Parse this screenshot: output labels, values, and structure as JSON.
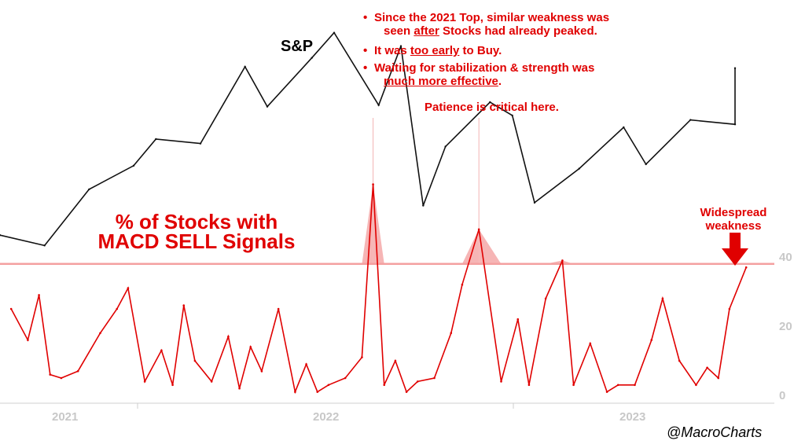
{
  "chart_data": [
    {
      "type": "line",
      "title": "S&P",
      "series": [
        {
          "name": "",
          "x": [
            "2020-10",
            "2020-12",
            "2021-02",
            "2021-04",
            "2021-05",
            "2021-07",
            "2021-09",
            "2021-10",
            "2021-12",
            "2022-01",
            "2022-03",
            "2022-04",
            "2022-05",
            "2022-06",
            "2022-08",
            "2022-09",
            "2022-10",
            "2022-12",
            "2023-02",
            "2023-03",
            "2023-05",
            "2023-07",
            "2023-07"
          ],
          "values": [
            3400,
            3330,
            3710,
            3870,
            4050,
            4020,
            4540,
            4270,
            4600,
            4770,
            4280,
            4680,
            3600,
            4000,
            4300,
            4210,
            3620,
            3850,
            4130,
            3880,
            4180,
            4150,
            4530
          ]
        }
      ]
    },
    {
      "type": "area",
      "title": "% of Stocks with MACD SELL Signals",
      "ylim": [
        0,
        40
      ],
      "yticks": [
        "0",
        "20",
        "40"
      ],
      "xticks": [
        "2021",
        "2022",
        "2023"
      ],
      "threshold": 38,
      "colors": {
        "line": "#e00000",
        "threshold": "#f4a0a0",
        "fill": "#f5a8a8"
      },
      "series": [
        {
          "name": "",
          "x": [
            "2020-10",
            "2020-11",
            "2020-11",
            "2020-12",
            "2020-12",
            "2021-01",
            "2021-02",
            "2021-03",
            "2021-03",
            "2021-04",
            "2021-05",
            "2021-05",
            "2021-06",
            "2021-06",
            "2021-07",
            "2021-08",
            "2021-08",
            "2021-09",
            "2021-09",
            "2021-10",
            "2021-11",
            "2021-11",
            "2021-12",
            "2021-12",
            "2022-01",
            "2022-02",
            "2022-02",
            "2022-03",
            "2022-03",
            "2022-04",
            "2022-04",
            "2022-05",
            "2022-06",
            "2022-06",
            "2022-07",
            "2022-08",
            "2022-09",
            "2022-09",
            "2022-10",
            "2022-11",
            "2022-11",
            "2022-12",
            "2023-01",
            "2023-01",
            "2023-02",
            "2023-03",
            "2023-03",
            "2023-04",
            "2023-05",
            "2023-05",
            "2023-06",
            "2023-06",
            "2023-07"
          ],
          "values": [
            25,
            16,
            29,
            6,
            5,
            7,
            18,
            25,
            31,
            4,
            13,
            3,
            26,
            10,
            4,
            17,
            2,
            14,
            7,
            25,
            1,
            9,
            1,
            3,
            5,
            11,
            61,
            3,
            10,
            1,
            4,
            5,
            18,
            32,
            48,
            4,
            22,
            3,
            28,
            39,
            3,
            15,
            1,
            3,
            3,
            16,
            28,
            10,
            3,
            8,
            5,
            25,
            37
          ]
        }
      ]
    }
  ],
  "annotations": {
    "bullets": [
      {
        "symbol": "•",
        "lines": [
          [
            "Since the 2021 Top, similar weakness was"
          ],
          [
            "seen ",
            {
              "u": "after"
            },
            " Stocks had already peaked."
          ]
        ]
      },
      {
        "symbol": "•",
        "lines": [
          [
            "It was ",
            {
              "u": "too early"
            },
            " to Buy."
          ]
        ]
      },
      {
        "symbol": "•",
        "lines": [
          [
            "Waiting for stabilization & strength was"
          ],
          [
            {
              "u": "much more effective"
            },
            "."
          ]
        ]
      }
    ],
    "patience": "Patience is critical here.",
    "panel_title_line1": "% of Stocks with",
    "panel_title_line2": "MACD SELL Signals",
    "callout_line1": "Widespread",
    "callout_line2": "weakness",
    "credit": "@MacroCharts"
  }
}
